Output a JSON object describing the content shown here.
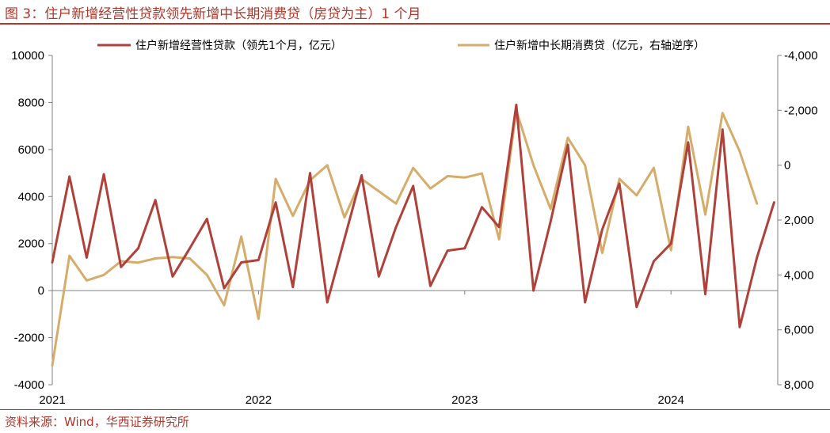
{
  "title": "图 3：住户新增经营性贷款领先新增中长期消费贷（房贷为主）1 个月",
  "source": "资料来源：Wind，华西证券研究所",
  "chart_data": {
    "type": "line",
    "title": "",
    "left_axis": {
      "min": -4000,
      "max": 10000,
      "ticks": [
        -4000,
        -2000,
        0,
        2000,
        4000,
        6000,
        8000,
        10000
      ],
      "tick_labels": [
        "-4000",
        "-2000",
        "0",
        "2000",
        "4000",
        "6000",
        "8000",
        "10000"
      ]
    },
    "right_axis": {
      "reversed": true,
      "min": -4000,
      "max": 8000,
      "ticks": [
        -4000,
        -2000,
        0,
        2000,
        4000,
        6000,
        8000
      ],
      "tick_labels": [
        "-4,000",
        "-2,000",
        "0",
        "2,000",
        "4,000",
        "6,000",
        "8,000"
      ]
    },
    "x_labels": [
      "2021",
      "2022",
      "2023",
      "2024"
    ],
    "x_label_months": [
      0,
      12,
      24,
      36
    ],
    "legend_position": "top",
    "colors": {
      "series1": "#b0403a",
      "series2": "#d5ac6a"
    },
    "series": [
      {
        "name": "住户新增经营性贷款（领先1个月，亿元）",
        "axis": "left",
        "color": "#b0403a",
        "month_offset": 0,
        "values": [
          1200,
          4850,
          1400,
          4950,
          1000,
          1800,
          3850,
          600,
          1800,
          3050,
          100,
          1200,
          1300,
          3750,
          150,
          5000,
          -500,
          2200,
          4900,
          600,
          2700,
          4450,
          200,
          1700,
          1800,
          3550,
          2700,
          7900,
          0,
          2950,
          6200,
          -500,
          2600,
          4550,
          -700,
          1250,
          2000,
          6300,
          -150,
          6850,
          -1550,
          1400,
          3750
        ]
      },
      {
        "name": "住户新增中长期消费贷（亿元，右轴逆序）",
        "axis": "right",
        "color": "#d5ac6a",
        "month_offset": 0,
        "values": [
          7300,
          3300,
          4200,
          4000,
          3500,
          3550,
          3400,
          3350,
          3400,
          4000,
          5100,
          2600,
          5600,
          500,
          1850,
          550,
          0,
          1900,
          500,
          950,
          1400,
          100,
          850,
          400,
          450,
          300,
          2700,
          -2000,
          0,
          1600,
          -1000,
          0,
          3200,
          500,
          1100,
          100,
          3100,
          -1400,
          1800,
          -1900,
          -500,
          1400
        ]
      }
    ]
  }
}
